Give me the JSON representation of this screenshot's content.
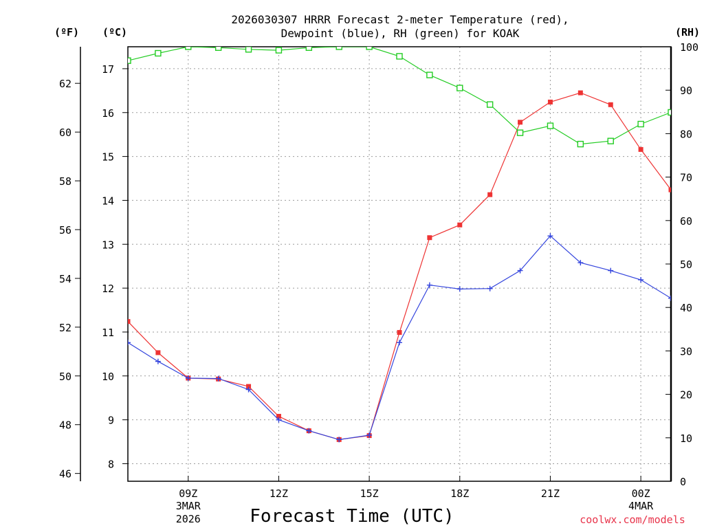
{
  "chart_data": {
    "type": "line",
    "title_line1": "2026030307 HRRR Forecast 2-meter Temperature (red),",
    "title_line2": "Dewpoint (blue), RH (green) for KOAK",
    "xlabel": "Forecast Time (UTC)",
    "credit": "coolwx.com/models",
    "units": {
      "fahrenheit": "(ºF)",
      "celsius": "(ºC)",
      "rh": "(RH)"
    },
    "hours": [
      7,
      8,
      9,
      10,
      11,
      12,
      13,
      14,
      15,
      16,
      17,
      18,
      19,
      20,
      21,
      22,
      23,
      24,
      25
    ],
    "x_range_hours": [
      7,
      25
    ],
    "x_ticks": [
      {
        "hour": 9,
        "label": "09Z",
        "date1": "3MAR",
        "date2": "2026"
      },
      {
        "hour": 12,
        "label": "12Z"
      },
      {
        "hour": 15,
        "label": "15Z"
      },
      {
        "hour": 18,
        "label": "18Z"
      },
      {
        "hour": 21,
        "label": "21Z"
      },
      {
        "hour": 24,
        "label": "00Z",
        "date1": "4MAR"
      }
    ],
    "celsius_range": [
      7.6,
      17.5
    ],
    "celsius_ticks": [
      8,
      9,
      10,
      11,
      12,
      13,
      14,
      15,
      16,
      17
    ],
    "fahrenheit_ticks": [
      46,
      48,
      50,
      52,
      54,
      56,
      58,
      60,
      62
    ],
    "rh_range": [
      0,
      100
    ],
    "rh_ticks": [
      0,
      10,
      20,
      30,
      40,
      50,
      60,
      70,
      80,
      90,
      100
    ],
    "series": [
      {
        "name": "Temperature",
        "axis": "celsius",
        "color": "#ee3333",
        "marker": "filled-square",
        "values": [
          11.24,
          10.53,
          9.95,
          9.93,
          9.76,
          9.08,
          8.75,
          8.55,
          8.64,
          10.99,
          13.15,
          13.44,
          14.13,
          15.78,
          16.24,
          16.45,
          16.18,
          15.16,
          14.24
        ]
      },
      {
        "name": "Dewpoint",
        "axis": "celsius",
        "color": "#3344dd",
        "marker": "plus",
        "values": [
          10.76,
          10.33,
          9.95,
          9.94,
          9.69,
          9.0,
          8.75,
          8.55,
          8.65,
          10.76,
          12.07,
          11.98,
          11.99,
          12.4,
          13.19,
          12.58,
          12.4,
          12.19,
          11.77
        ]
      },
      {
        "name": "RH",
        "axis": "rh",
        "color": "#22cc22",
        "marker": "open-square",
        "values": [
          96.8,
          98.5,
          100,
          99.8,
          99.4,
          99.2,
          99.8,
          100,
          100,
          97.8,
          93.5,
          90.5,
          86.7,
          80.2,
          81.8,
          77.6,
          78.3,
          82.2,
          84.9
        ]
      }
    ]
  }
}
